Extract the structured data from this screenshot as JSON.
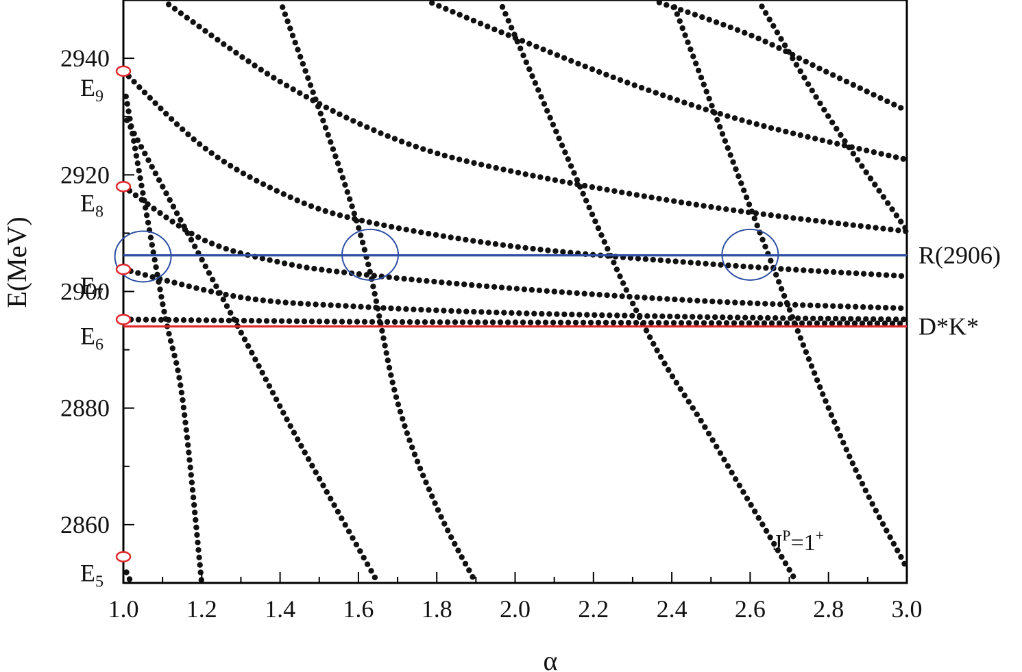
{
  "chart_data": {
    "type": "scatter",
    "xlabel": "α",
    "ylabel": "E(MeV)",
    "xlim": [
      1.0,
      3.0
    ],
    "ylim": [
      2850,
      2950
    ],
    "x_ticks": [
      "1.0",
      "1.2",
      "1.4",
      "1.6",
      "1.8",
      "2.0",
      "2.2",
      "2.4",
      "2.6",
      "2.8",
      "3.0"
    ],
    "y_ticks": [
      "2860",
      "2880",
      "2900",
      "2920",
      "2940"
    ],
    "annotation": {
      "base": "J",
      "sup": "P",
      "rest": "=1",
      "rest_sup": "+"
    },
    "reference_lines": [
      {
        "label": "R(2906)",
        "y": 2906.2,
        "color": "#2e4fa3"
      },
      {
        "label": "D*K*",
        "y": 2894.0,
        "color": "#e0272b"
      }
    ],
    "initial_states": [
      {
        "base": "E",
        "sub": "5",
        "y": 2854.5
      },
      {
        "base": "E",
        "sub": "6",
        "y": 2895.2
      },
      {
        "base": "E",
        "sub": "7",
        "y": 2903.8
      },
      {
        "base": "E",
        "sub": "8",
        "y": 2918.0
      },
      {
        "base": "E",
        "sub": "9",
        "y": 2937.8
      }
    ],
    "highlighted_crossings": [
      {
        "x": 1.05,
        "y": 2906.0
      },
      {
        "x": 1.63,
        "y": 2906.3
      },
      {
        "x": 2.6,
        "y": 2906.3
      }
    ],
    "series": [
      {
        "points": [
          [
            1.0,
            2895.2
          ],
          [
            1.3,
            2895.0
          ],
          [
            1.6,
            2894.8
          ],
          [
            2.0,
            2894.7
          ],
          [
            2.5,
            2894.6
          ],
          [
            3.0,
            2894.5
          ]
        ]
      },
      {
        "points": [
          [
            1.0,
            2903.8
          ],
          [
            1.3,
            2899.0
          ],
          [
            1.6,
            2897.4
          ],
          [
            2.0,
            2896.3
          ],
          [
            2.5,
            2895.6
          ],
          [
            3.0,
            2895.2
          ]
        ]
      },
      {
        "points": [
          [
            1.0,
            2918.0
          ],
          [
            1.2,
            2909.0
          ],
          [
            1.4,
            2905.0
          ],
          [
            1.6,
            2903.0
          ],
          [
            2.0,
            2900.5
          ],
          [
            2.5,
            2898.3
          ],
          [
            3.0,
            2897.1
          ]
        ]
      },
      {
        "points": [
          [
            1.0,
            2937.8
          ],
          [
            1.2,
            2925.0
          ],
          [
            1.4,
            2917.0
          ],
          [
            1.6,
            2912.3
          ],
          [
            2.0,
            2907.7
          ],
          [
            2.5,
            2904.7
          ],
          [
            3.0,
            2902.6
          ]
        ]
      },
      {
        "points": [
          [
            1.1,
            2950.0
          ],
          [
            1.4,
            2936.0
          ],
          [
            1.7,
            2926.0
          ],
          [
            2.0,
            2920.5
          ],
          [
            2.5,
            2914.5
          ],
          [
            3.0,
            2910.3
          ]
        ]
      },
      {
        "points": [
          [
            1.77,
            2950.0
          ],
          [
            2.0,
            2943.5
          ],
          [
            2.3,
            2935.5
          ],
          [
            2.6,
            2929.0
          ],
          [
            3.0,
            2922.6
          ]
        ]
      },
      {
        "points": [
          [
            2.35,
            2950.0
          ],
          [
            2.6,
            2944.0
          ],
          [
            2.8,
            2937.5
          ],
          [
            3.0,
            2931.0
          ]
        ]
      },
      {
        "points": [
          [
            1.0,
            2853.0
          ],
          [
            1.02,
            2850.0
          ]
        ]
      },
      {
        "points": [
          [
            1.0,
            2936.0
          ],
          [
            1.1,
            2898.0
          ],
          [
            1.15,
            2882.0
          ],
          [
            1.2,
            2850.0
          ]
        ]
      },
      {
        "points": [
          [
            1.0,
            2930.5
          ],
          [
            1.3,
            2893.0
          ],
          [
            1.45,
            2874.0
          ],
          [
            1.65,
            2850.0
          ]
        ]
      },
      {
        "points": [
          [
            1.4,
            2950.0
          ],
          [
            1.6,
            2911.0
          ],
          [
            1.7,
            2881.0
          ],
          [
            1.8,
            2863.0
          ],
          [
            1.9,
            2850.0
          ]
        ]
      },
      {
        "points": [
          [
            1.96,
            2950.0
          ],
          [
            2.3,
            2898.0
          ],
          [
            2.5,
            2875.0
          ],
          [
            2.72,
            2850.0
          ]
        ]
      },
      {
        "points": [
          [
            2.4,
            2950.0
          ],
          [
            2.8,
            2880.0
          ],
          [
            3.0,
            2852.5
          ]
        ]
      },
      {
        "points": [
          [
            2.62,
            2950.0
          ],
          [
            2.8,
            2930.0
          ],
          [
            3.0,
            2910.5
          ]
        ]
      }
    ]
  }
}
